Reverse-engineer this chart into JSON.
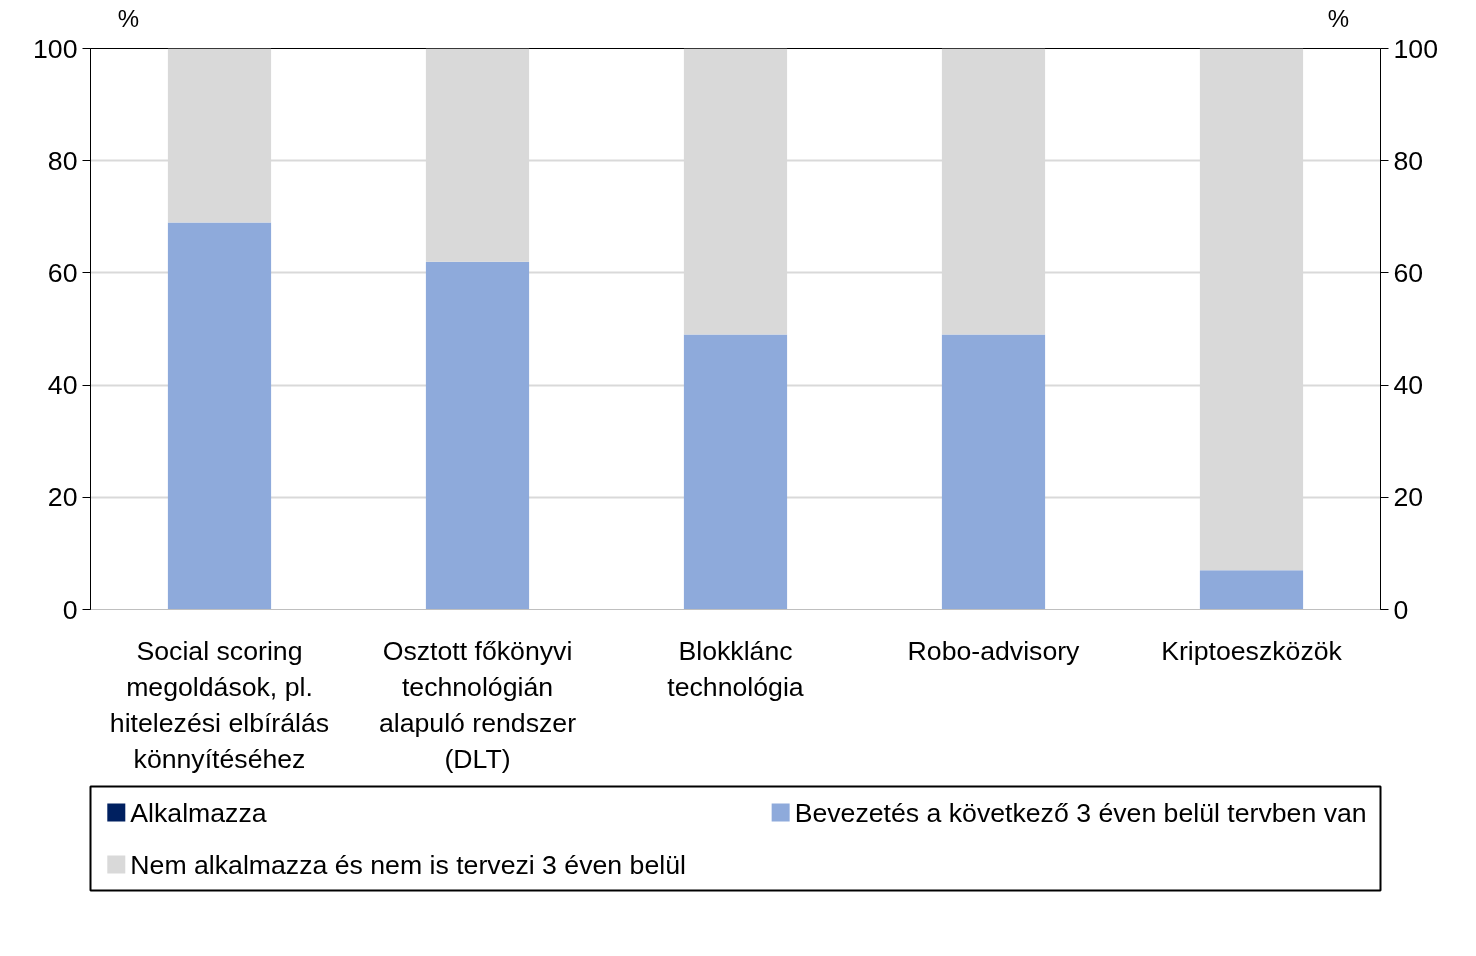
{
  "chart_data": {
    "type": "bar",
    "stacked": true,
    "categories": [
      "Social scoring\nmegoldások, pl.\nhitelezési elbírálás\nkönnyítéséhez",
      "Osztott főkönyvi\ntechnológián\nalapuló rendszer\n(DLT)",
      "Blokklánc\ntechnológia",
      "Robo-advisory",
      "Kriptoeszközök"
    ],
    "series": [
      {
        "name": "Alkalmazza",
        "color": "#002060",
        "values": [
          0,
          0,
          0,
          0,
          0
        ]
      },
      {
        "name": "Bevezetés a következő 3 éven belül tervben van",
        "color": "#8eaadb",
        "values": [
          69,
          62,
          49,
          49,
          7
        ]
      },
      {
        "name": "Nem alkalmazza és nem is tervezi 3 éven belül",
        "color": "#d9d9d9",
        "values": [
          31,
          38,
          51,
          51,
          93
        ]
      }
    ],
    "ylabel": "%",
    "y2label": "%",
    "ylim": [
      0,
      100
    ],
    "yticks": [
      0,
      20,
      40,
      60,
      80,
      100
    ],
    "y2lim": [
      0,
      100
    ],
    "y2ticks": [
      0,
      20,
      40,
      60,
      80,
      100
    ],
    "grid": "y",
    "legend": "bottom"
  }
}
